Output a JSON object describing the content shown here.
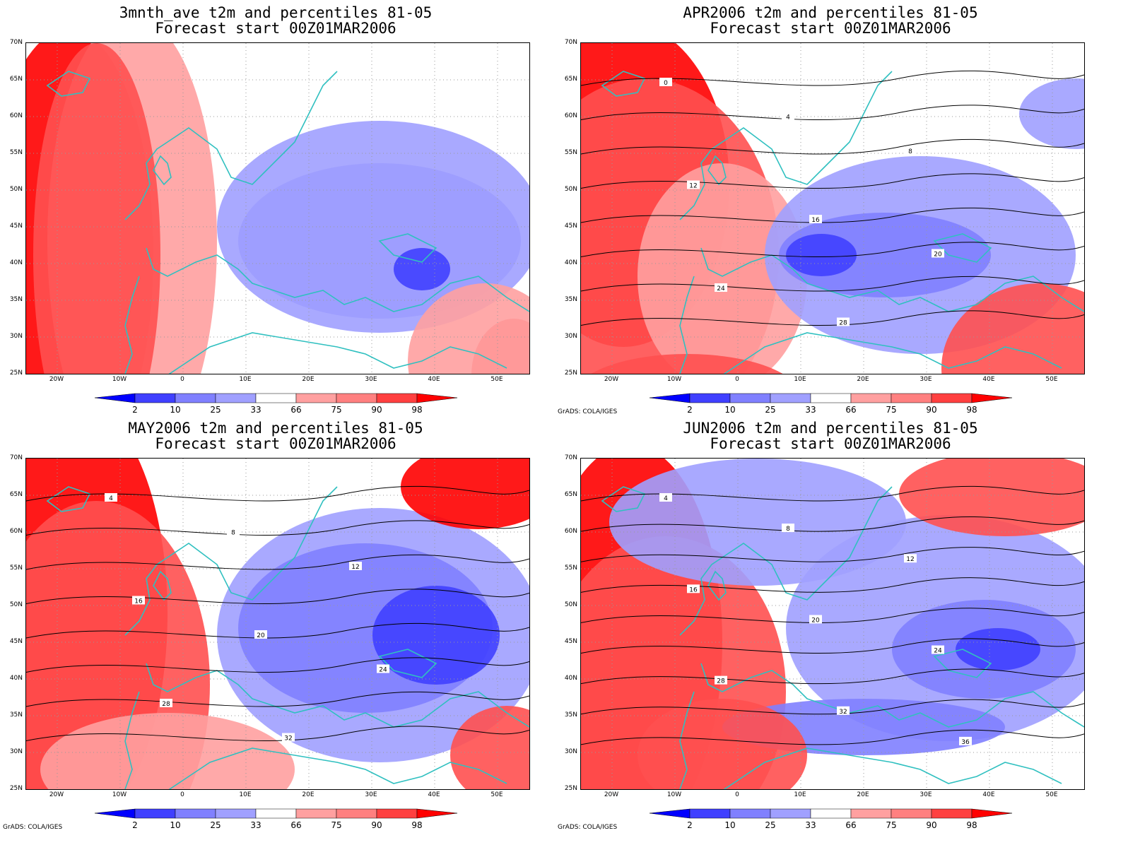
{
  "panels": [
    {
      "title1": "3mnth_ave t2m and percentiles 81-05",
      "title2": "Forecast start 00Z01MAR2006",
      "credit": "",
      "blobs": [
        [
          "#ff0000",
          60,
          300,
          120,
          320
        ],
        [
          "#ffa0a0",
          150,
          280,
          120,
          320
        ],
        [
          "#ff5050",
          100,
          300,
          90,
          300
        ],
        [
          "#8080ff",
          500,
          280,
          200,
          110
        ],
        [
          "#a0a0ff",
          500,
          260,
          230,
          150
        ],
        [
          "#4040ff",
          560,
          320,
          40,
          30
        ],
        [
          "#ff5050",
          690,
          470,
          60,
          80
        ],
        [
          "#ffa0a0",
          650,
          450,
          110,
          110
        ]
      ],
      "contours": []
    },
    {
      "title1": "APR2006 t2m and percentiles 81-05",
      "title2": "Forecast start 00Z01MAR2006",
      "credit": "GrADS: COLA/IGES",
      "blobs": [
        [
          "#ff0000",
          60,
          200,
          150,
          230
        ],
        [
          "#ff5050",
          90,
          300,
          190,
          250
        ],
        [
          "#ffa0a0",
          200,
          330,
          120,
          160
        ],
        [
          "#a0a0ff",
          480,
          300,
          220,
          140
        ],
        [
          "#8080ff",
          430,
          300,
          150,
          60
        ],
        [
          "#4040ff",
          340,
          300,
          50,
          30
        ],
        [
          "#ff5050",
          650,
          460,
          140,
          120
        ],
        [
          "#a0a0ff",
          700,
          100,
          80,
          50
        ],
        [
          "#ff5050",
          150,
          500,
          160,
          60
        ]
      ],
      "contours": [
        "0",
        "4",
        "8",
        "12",
        "16",
        "20",
        "24",
        "28"
      ]
    },
    {
      "title1": "MAY2006 t2m and percentiles 81-05",
      "title2": "Forecast start 00Z01MAR2006",
      "credit": "GrADS: COLA/IGES",
      "blobs": [
        [
          "#ff0000",
          70,
          220,
          130,
          300
        ],
        [
          "#ff5050",
          100,
          320,
          160,
          260
        ],
        [
          "#a0a0ff",
          500,
          250,
          230,
          180
        ],
        [
          "#8080ff",
          480,
          240,
          180,
          120
        ],
        [
          "#4040ff",
          580,
          250,
          90,
          70
        ],
        [
          "#ff0000",
          640,
          40,
          110,
          60
        ],
        [
          "#ff5050",
          680,
          420,
          80,
          70
        ],
        [
          "#ffa0a0",
          200,
          440,
          180,
          80
        ]
      ],
      "contours": [
        "4",
        "8",
        "12",
        "16",
        "20",
        "24",
        "28",
        "32"
      ]
    },
    {
      "title1": "JUN2006 t2m and percentiles 81-05",
      "title2": "Forecast start 00Z01MAR2006",
      "credit": "GrADS: COLA/IGES",
      "blobs": [
        [
          "#ff0000",
          70,
          260,
          130,
          280
        ],
        [
          "#ff5050",
          120,
          330,
          170,
          220
        ],
        [
          "#a0a0ff",
          250,
          90,
          210,
          90
        ],
        [
          "#a0a0ff",
          520,
          240,
          230,
          160
        ],
        [
          "#8080ff",
          570,
          270,
          130,
          70
        ],
        [
          "#4040ff",
          590,
          270,
          60,
          30
        ],
        [
          "#ff5050",
          600,
          50,
          150,
          60
        ],
        [
          "#8080ff",
          400,
          380,
          200,
          40
        ],
        [
          "#ff5050",
          200,
          420,
          120,
          80
        ]
      ],
      "contours": [
        "4",
        "8",
        "12",
        "16",
        "20",
        "24",
        "28",
        "32",
        "36"
      ]
    }
  ],
  "lat_labels": [
    "70N",
    "65N",
    "60N",
    "55N",
    "50N",
    "45N",
    "40N",
    "35N",
    "30N",
    "25N"
  ],
  "lon_labels": [
    "20W",
    "10W",
    "0",
    "10E",
    "20E",
    "30E",
    "40E",
    "50E"
  ],
  "colorbar": {
    "labels": [
      "2",
      "10",
      "25",
      "33",
      "66",
      "75",
      "90",
      "98"
    ],
    "colors": [
      "#0000ff",
      "#4040ff",
      "#8080ff",
      "#a0a0ff",
      "#ffffff",
      "#ffa0a0",
      "#ff8080",
      "#ff4040",
      "#ff0000"
    ]
  },
  "coastline_color": "#30c0c0"
}
